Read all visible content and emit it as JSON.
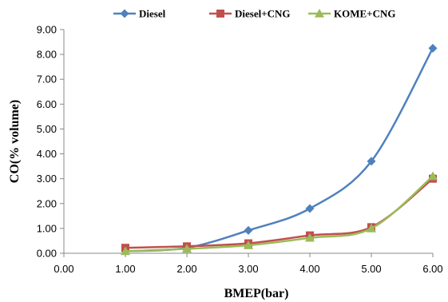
{
  "chart_data": {
    "type": "line",
    "title": "",
    "xlabel": "BMEP(bar)",
    "ylabel": "CO(% volume)",
    "xlim": [
      0,
      6
    ],
    "ylim": [
      0,
      9
    ],
    "x_ticks": [
      "0.00",
      "1.00",
      "2.00",
      "3.00",
      "4.00",
      "5.00",
      "6.00"
    ],
    "y_ticks": [
      "0.00",
      "1.00",
      "2.00",
      "3.00",
      "4.00",
      "5.00",
      "6.00",
      "7.00",
      "8.00",
      "9.00"
    ],
    "grid": false,
    "legend_position": "top",
    "smooth": true,
    "series": [
      {
        "name": "Diesel",
        "color": "#4F81BD",
        "marker": "diamond",
        "x": [
          1,
          2,
          3,
          4,
          5,
          6
        ],
        "y": [
          0.08,
          0.22,
          0.92,
          1.8,
          3.7,
          8.25
        ]
      },
      {
        "name": "Diesel+CNG",
        "color": "#C0504D",
        "marker": "square",
        "x": [
          1,
          2,
          3,
          4,
          5,
          6
        ],
        "y": [
          0.22,
          0.28,
          0.4,
          0.72,
          1.05,
          3.0
        ]
      },
      {
        "name": "KOME+CNG",
        "color": "#9BBB59",
        "marker": "triangle",
        "x": [
          1,
          2,
          3,
          4,
          5,
          6
        ],
        "y": [
          0.08,
          0.18,
          0.32,
          0.62,
          1.0,
          3.1
        ]
      }
    ]
  }
}
